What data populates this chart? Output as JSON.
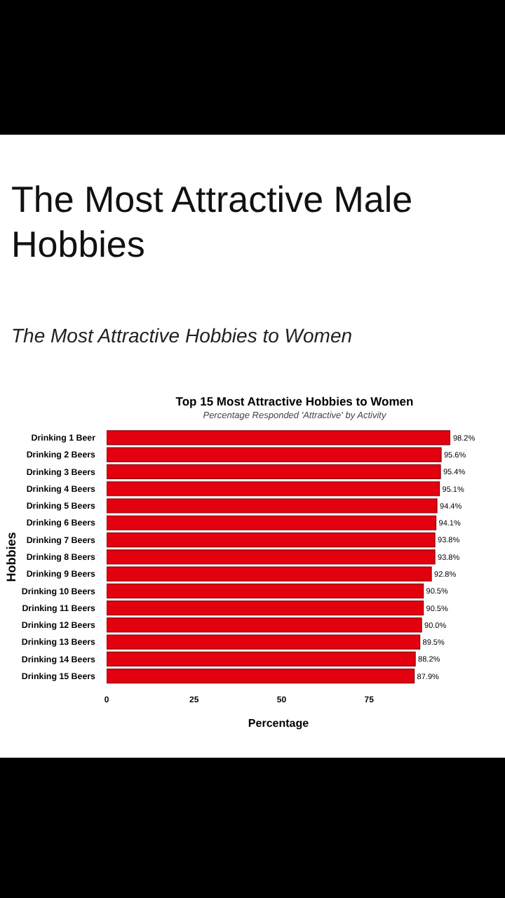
{
  "chart_data": {
    "type": "bar",
    "orientation": "horizontal",
    "title": "The Most Attractive Male Hobbies",
    "subtitle": "The Most Attractive Hobbies to Women",
    "annotations": [
      "Top 15 Most Attractive Hobbies to Women",
      "Percentage Responded 'Attractive' by Activity"
    ],
    "xlabel": "Percentage",
    "ylabel": "Hobbies",
    "categories": [
      "Drinking 1 Beer",
      "Drinking 2 Beers",
      "Drinking 3 Beers",
      "Drinking 4 Beers",
      "Drinking 5 Beers",
      "Drinking 6 Beers",
      "Drinking 7 Beers",
      "Drinking 8 Beers",
      "Drinking 9 Beers",
      "Drinking 10 Beers",
      "Drinking 11 Beers",
      "Drinking 12 Beers",
      "Drinking 13 Beers",
      "Drinking 14 Beers",
      "Drinking 15 Beers"
    ],
    "values": [
      98.2,
      95.6,
      95.4,
      95.1,
      94.4,
      94.1,
      93.8,
      93.8,
      92.8,
      90.5,
      90.5,
      90.0,
      89.5,
      88.2,
      87.9
    ],
    "value_labels": [
      "98.2%",
      "95.6%",
      "95.4%",
      "95.1%",
      "94.4%",
      "94.1%",
      "93.8%",
      "93.8%",
      "92.8%",
      "90.5%",
      "90.5%",
      "90.0%",
      "89.5%",
      "88.2%",
      "87.9%"
    ],
    "color": "#e3000f",
    "xlim": [
      0,
      98.2
    ],
    "xticks": [
      0,
      25,
      50,
      75
    ],
    "grid": false,
    "legend": false
  }
}
